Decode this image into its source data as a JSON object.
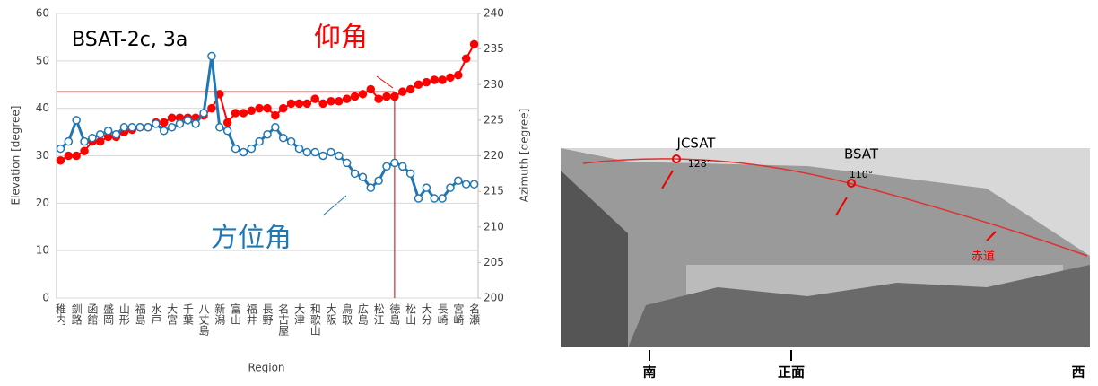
{
  "chart_data": {
    "type": "line",
    "title": "BSAT-2c, 3a",
    "x_label": "Region",
    "y_label": "Elevation [degree]",
    "y2_label": "Azimuth [degree]",
    "categories": [
      "稚内",
      null,
      "釧路",
      null,
      "函館",
      null,
      "盛岡",
      null,
      "山形",
      null,
      "福島",
      null,
      "水戸",
      null,
      "大宮",
      null,
      "千葉",
      null,
      "八丈島",
      null,
      "新潟",
      null,
      "富山",
      null,
      "福井",
      null,
      "長野",
      null,
      "名古屋",
      null,
      "大津",
      null,
      "和歌山",
      null,
      "大阪",
      null,
      "鳥取",
      null,
      "広島",
      null,
      "松江",
      null,
      "徳島",
      null,
      "松山",
      null,
      "大分",
      null,
      "長崎",
      null,
      "宮崎",
      null,
      "名瀬"
    ],
    "series": [
      {
        "name": "仰角",
        "color": "#ff0000",
        "axis": "y",
        "values": [
          29,
          30,
          30,
          31,
          33,
          33,
          34,
          34,
          35,
          35.5,
          36,
          36,
          37,
          37,
          38,
          38,
          38,
          38,
          38.5,
          40,
          43,
          37,
          39,
          39,
          39.5,
          40,
          40,
          38.5,
          40,
          41,
          41,
          41,
          42,
          41,
          41.5,
          41.5,
          42,
          42.5,
          43,
          44,
          42,
          42.5,
          42.5,
          43.5,
          44,
          45,
          45.5,
          46,
          46,
          46.5,
          47,
          50.5,
          53.5
        ]
      },
      {
        "name": "方位角",
        "color": "#1f77b4",
        "axis": "y2",
        "values": [
          221,
          222,
          225,
          222,
          222.5,
          223,
          223.5,
          223,
          224,
          224,
          224,
          224,
          224.5,
          223.5,
          224,
          224.5,
          225,
          224.5,
          226,
          234,
          224,
          223.5,
          221,
          220.5,
          221,
          222,
          223,
          224,
          222.5,
          222,
          221,
          220.5,
          220.5,
          220,
          220.5,
          220,
          219,
          217.5,
          217,
          215.5,
          216.5,
          218.5,
          219,
          218.5,
          217.5,
          214,
          215.5,
          214,
          214,
          215.5,
          216.5,
          216,
          216
        ]
      }
    ],
    "reference": {
      "elevation": 43.5,
      "category": "徳島",
      "color": "#cc0000"
    },
    "ylim": [
      0,
      60
    ],
    "yticks": [
      0,
      10,
      20,
      30,
      40,
      50,
      60
    ],
    "y2lim": [
      200,
      240
    ],
    "y2ticks": [
      200,
      205,
      210,
      215,
      220,
      225,
      230,
      235,
      240
    ],
    "grid": true
  },
  "photo": {
    "satellites": [
      {
        "name": "JCSAT",
        "angle": "128°"
      },
      {
        "name": "BSAT",
        "angle": "110°"
      }
    ],
    "equator": "赤道",
    "directions": [
      "南",
      "正面",
      "西"
    ]
  }
}
